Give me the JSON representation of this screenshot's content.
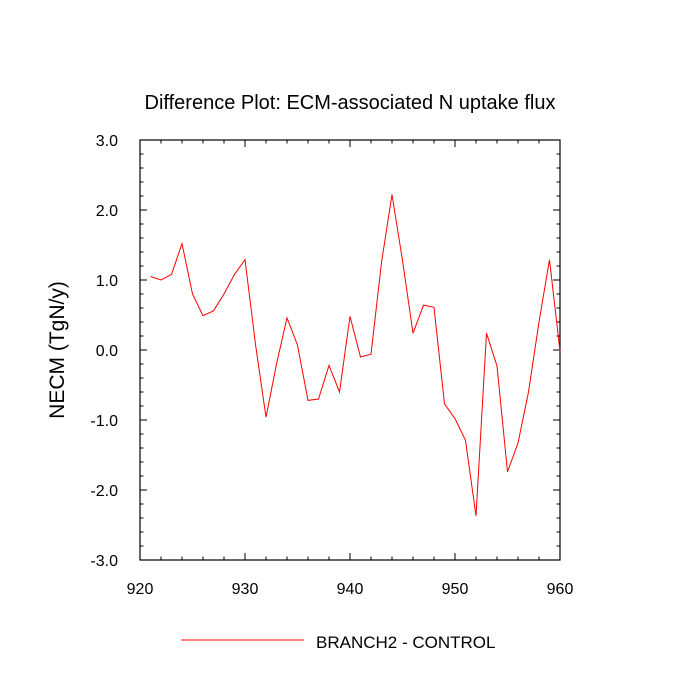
{
  "chart_data": {
    "type": "line",
    "title": "Difference Plot: ECM-associated N uptake flux",
    "xlabel": "",
    "ylabel": "NECM  (TgN/y)",
    "xlim": [
      920,
      960
    ],
    "ylim": [
      -3.0,
      3.0
    ],
    "xticks": [
      920,
      930,
      940,
      950,
      960
    ],
    "xtick_labels": [
      "920",
      "930",
      "940",
      "950",
      "960"
    ],
    "yticks": [
      -3.0,
      -2.0,
      -1.0,
      0.0,
      1.0,
      2.0,
      3.0
    ],
    "ytick_labels": [
      "-3.0",
      "-2.0",
      "-1.0",
      "0.0",
      "1.0",
      "2.0",
      "3.0"
    ],
    "grid": false,
    "legend_position": "bottom",
    "series": [
      {
        "name": "BRANCH2 - CONTROL",
        "color": "#ff0000",
        "x": [
          921,
          922,
          923,
          924,
          925,
          926,
          927,
          928,
          929,
          930,
          931,
          932,
          933,
          934,
          935,
          936,
          937,
          938,
          939,
          940,
          941,
          942,
          943,
          944,
          945,
          946,
          947,
          948,
          949,
          950,
          951,
          952,
          953,
          954,
          955,
          956,
          957,
          958,
          959,
          960
        ],
        "y": [
          1.05,
          1.0,
          1.08,
          1.52,
          0.8,
          0.49,
          0.56,
          0.8,
          1.08,
          1.29,
          0.08,
          -0.96,
          -0.2,
          0.46,
          0.07,
          -0.72,
          -0.7,
          -0.22,
          -0.6,
          0.48,
          -0.1,
          -0.06,
          1.25,
          2.22,
          1.28,
          0.24,
          0.64,
          0.61,
          -0.77,
          -0.98,
          -1.29,
          -2.37,
          0.24,
          -0.23,
          -1.74,
          -1.33,
          -0.6,
          0.4,
          1.29,
          -0.02
        ]
      }
    ]
  }
}
